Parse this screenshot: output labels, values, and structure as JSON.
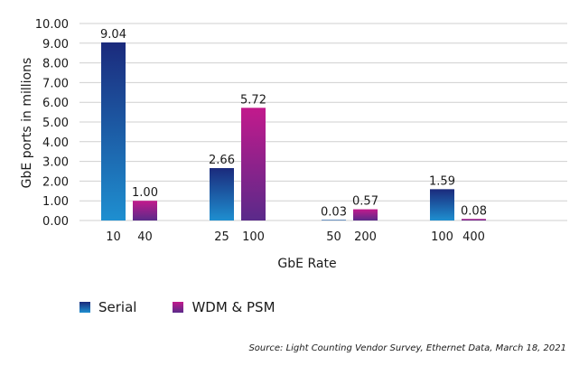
{
  "chart_data": {
    "type": "bar",
    "title": "",
    "xlabel": "GbE Rate",
    "ylabel": "GbE ports in millions",
    "ylim": [
      0,
      10
    ],
    "yticks": [
      "0.00",
      "1.00",
      "2.00",
      "3.00",
      "4.00",
      "5.00",
      "6.00",
      "7.00",
      "8.00",
      "9.00",
      "10.00"
    ],
    "grid": true,
    "legend_position": "bottom-left",
    "groups": [
      {
        "bars": [
          {
            "label": "10",
            "series": "Serial",
            "value": 9.04,
            "value_label": "9.04"
          },
          {
            "label": "40",
            "series": "WDM & PSM",
            "value": 1.0,
            "value_label": "1.00"
          }
        ]
      },
      {
        "bars": [
          {
            "label": "25",
            "series": "Serial",
            "value": 2.66,
            "value_label": "2.66"
          },
          {
            "label": "100",
            "series": "WDM & PSM",
            "value": 5.72,
            "value_label": "5.72"
          }
        ]
      },
      {
        "bars": [
          {
            "label": "50",
            "series": "Serial",
            "value": 0.03,
            "value_label": "0.03"
          },
          {
            "label": "200",
            "series": "WDM & PSM",
            "value": 0.57,
            "value_label": "0.57"
          }
        ]
      },
      {
        "bars": [
          {
            "label": "100",
            "series": "Serial",
            "value": 1.59,
            "value_label": "1.59"
          },
          {
            "label": "400",
            "series": "WDM & PSM",
            "value": 0.08,
            "value_label": "0.08"
          }
        ]
      }
    ],
    "series": [
      {
        "name": "Serial",
        "color_top": "#1b2a7c",
        "color_bottom": "#1e8fd0"
      },
      {
        "name": "WDM & PSM",
        "color_top": "#c21a8c",
        "color_bottom": "#5a2a8a"
      }
    ]
  },
  "legend": {
    "serial_label": "Serial",
    "wdm_label": "WDM & PSM"
  },
  "source": "Source: Light Counting Vendor Survey, Ethernet Data, March 18, 2021"
}
